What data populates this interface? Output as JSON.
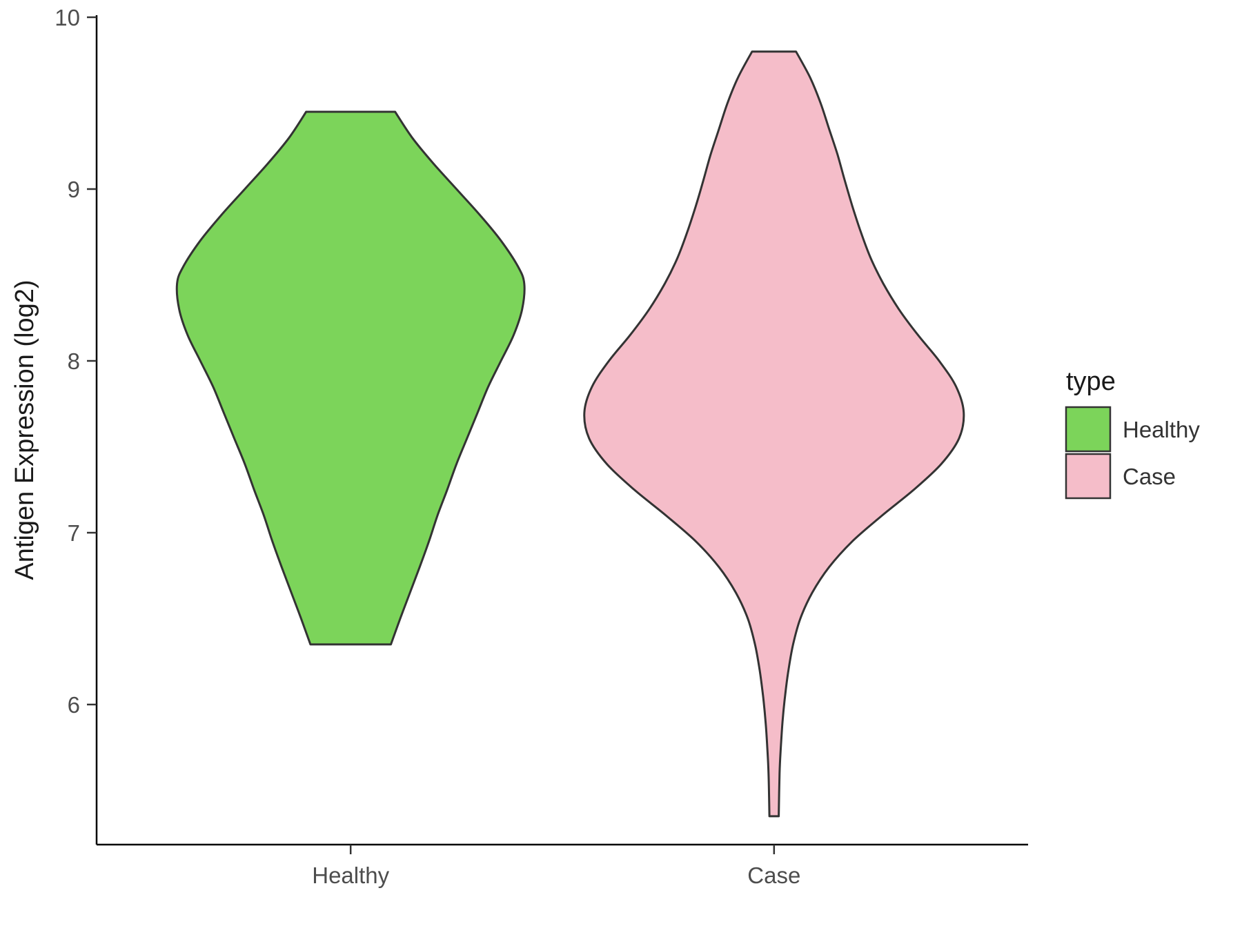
{
  "chart_data": {
    "type": "violin",
    "title": "",
    "xlabel": "",
    "ylabel": "Antigen Expression (log2)",
    "categories": [
      "Healthy",
      "Case"
    ],
    "y_ticks": [
      6,
      7,
      8,
      9,
      10
    ],
    "ylim": [
      5.19,
      10.02
    ],
    "grid": "off",
    "background_color": "#FFFFFF",
    "axis_color": "#000000",
    "tick_label_color": "#4D4D4D",
    "axis_title_color": "#1A1A1A",
    "outline_color": "#333333",
    "legend": {
      "title": "type",
      "position": "right",
      "entries": [
        {
          "label": "Healthy",
          "color": "#7CD45A"
        },
        {
          "label": "Case",
          "color": "#F5BDC9"
        }
      ]
    },
    "series": [
      {
        "name": "Healthy",
        "color": "#7CD45A",
        "y_min": 6.35,
        "y_max": 9.45,
        "widest_at": 8.45,
        "profile": [
          [
            9.45,
            0.105
          ],
          [
            9.3,
            0.145
          ],
          [
            9.15,
            0.195
          ],
          [
            9.0,
            0.25
          ],
          [
            8.85,
            0.305
          ],
          [
            8.7,
            0.355
          ],
          [
            8.55,
            0.395
          ],
          [
            8.45,
            0.41
          ],
          [
            8.3,
            0.405
          ],
          [
            8.15,
            0.385
          ],
          [
            8.0,
            0.355
          ],
          [
            7.85,
            0.325
          ],
          [
            7.7,
            0.3
          ],
          [
            7.55,
            0.275
          ],
          [
            7.4,
            0.25
          ],
          [
            7.25,
            0.228
          ],
          [
            7.1,
            0.205
          ],
          [
            6.95,
            0.185
          ],
          [
            6.8,
            0.163
          ],
          [
            6.65,
            0.14
          ],
          [
            6.5,
            0.117
          ],
          [
            6.35,
            0.095
          ]
        ]
      },
      {
        "name": "Case",
        "color": "#F5BDC9",
        "y_min": 5.35,
        "y_max": 9.8,
        "widest_at": 7.7,
        "profile": [
          [
            9.8,
            0.052
          ],
          [
            9.65,
            0.085
          ],
          [
            9.5,
            0.11
          ],
          [
            9.35,
            0.13
          ],
          [
            9.2,
            0.15
          ],
          [
            9.05,
            0.167
          ],
          [
            8.9,
            0.185
          ],
          [
            8.75,
            0.205
          ],
          [
            8.6,
            0.228
          ],
          [
            8.45,
            0.258
          ],
          [
            8.3,
            0.295
          ],
          [
            8.15,
            0.34
          ],
          [
            8.0,
            0.39
          ],
          [
            7.85,
            0.43
          ],
          [
            7.7,
            0.448
          ],
          [
            7.55,
            0.437
          ],
          [
            7.4,
            0.395
          ],
          [
            7.25,
            0.33
          ],
          [
            7.1,
            0.255
          ],
          [
            6.95,
            0.185
          ],
          [
            6.8,
            0.13
          ],
          [
            6.65,
            0.09
          ],
          [
            6.5,
            0.062
          ],
          [
            6.35,
            0.045
          ],
          [
            6.2,
            0.034
          ],
          [
            6.05,
            0.026
          ],
          [
            5.9,
            0.02
          ],
          [
            5.75,
            0.016
          ],
          [
            5.6,
            0.013
          ],
          [
            5.35,
            0.011
          ]
        ]
      }
    ]
  }
}
